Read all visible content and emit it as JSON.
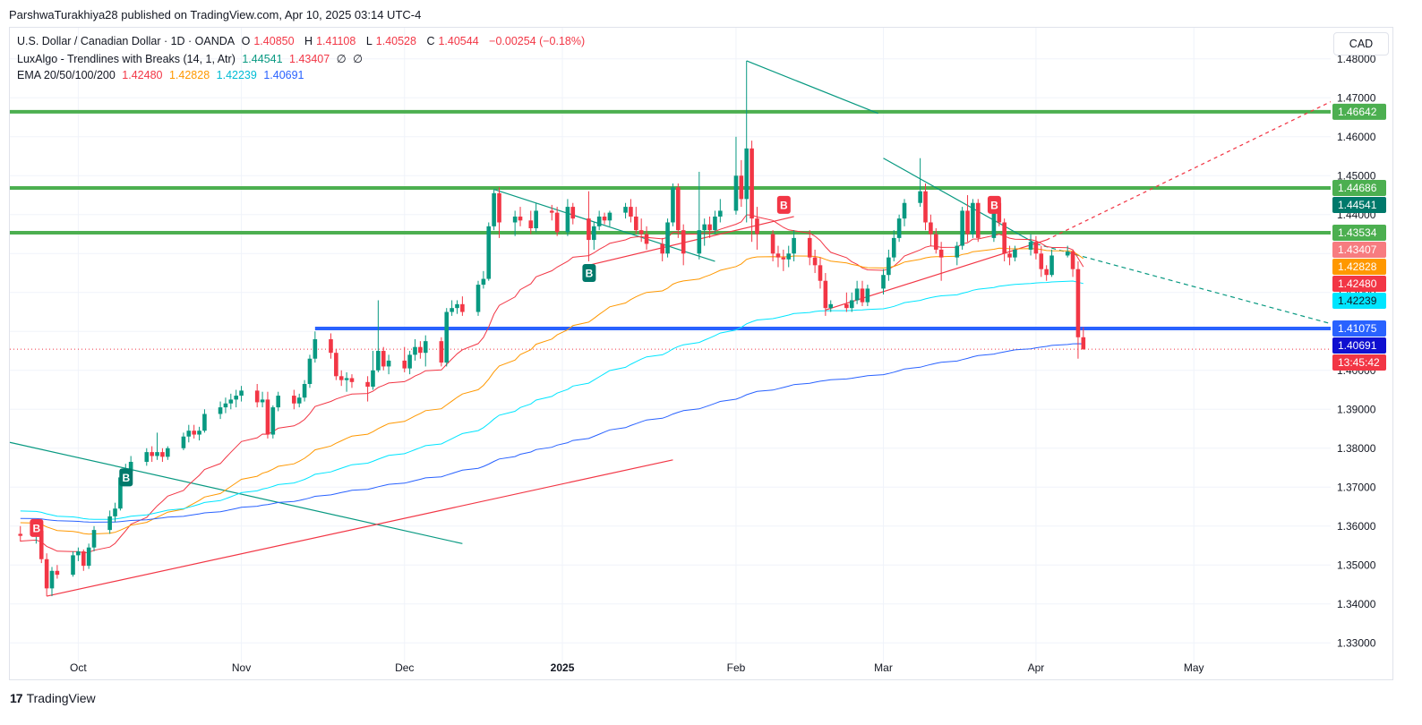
{
  "header": {
    "published": "ParshwaTurakhiya28 published on TradingView.com, Apr 10, 2025 03:14 UTC-4"
  },
  "legend": {
    "symbol": "U.S. Dollar / Canadian Dollar · 1D · OANDA",
    "o_label": "O",
    "o": "1.40850",
    "h_label": "H",
    "h": "1.41108",
    "l_label": "L",
    "l": "1.40528",
    "c_label": "C",
    "c": "1.40544",
    "change": "−0.00254 (−0.18%)",
    "luxalgo": "LuxAlgo - Trendlines with Breaks (14, 1, Atr)",
    "lux_v1": "1.44541",
    "lux_v2": "1.43407",
    "lux_v3": "∅",
    "lux_v4": "∅",
    "ema": "EMA 20/50/100/200",
    "ema20": "1.42480",
    "ema50": "1.42828",
    "ema100": "1.42239",
    "ema200": "1.40691"
  },
  "currency_button": "CAD",
  "brand": {
    "logo": "17",
    "name": "TradingView"
  },
  "colors": {
    "up": "#089981",
    "down": "#f23645",
    "ema20": "#f23645",
    "ema50": "#ff9800",
    "ema100": "#00e5ff",
    "ema200": "#2962ff",
    "level": "#4caf50",
    "support": "#2962ff",
    "trend_down": "#089981",
    "trend_up": "#f23645"
  },
  "chart_data": {
    "type": "candlestick",
    "ylim": [
      1.325,
      1.488
    ],
    "y_ticks": [
      "1.48000",
      "1.47000",
      "1.46000",
      "1.45000",
      "1.44000",
      "1.43000",
      "1.42000",
      "1.41000",
      "1.40000",
      "1.39000",
      "1.38000",
      "1.37000",
      "1.36000",
      "1.35000",
      "1.34000",
      "1.33000"
    ],
    "x_ticks": [
      {
        "label": "Oct",
        "date": "2024-10-01"
      },
      {
        "label": "Nov",
        "date": "2024-11-01"
      },
      {
        "label": "Dec",
        "date": "2024-12-02"
      },
      {
        "label": "2025",
        "date": "2025-01-01",
        "bold": true
      },
      {
        "label": "Feb",
        "date": "2025-02-03"
      },
      {
        "label": "Mar",
        "date": "2025-03-03"
      },
      {
        "label": "Apr",
        "date": "2025-04-01"
      },
      {
        "label": "May",
        "date": "2025-05-01"
      }
    ],
    "horizontal_levels": [
      {
        "value": 1.46642,
        "label": "1.46642",
        "color": "#4caf50"
      },
      {
        "value": 1.44686,
        "label": "1.44686",
        "color": "#4caf50"
      },
      {
        "value": 1.43534,
        "label": "1.43534",
        "color": "#4caf50"
      },
      {
        "value": 1.41075,
        "label": "1.41075",
        "color": "#2962ff",
        "start_date": "2024-11-15"
      }
    ],
    "price_labels": [
      {
        "value": 1.46642,
        "label": "1.46642",
        "bg": "#4caf50",
        "fg": "#ffffff"
      },
      {
        "value": 1.44686,
        "label": "1.44686",
        "bg": "#4caf50",
        "fg": "#ffffff"
      },
      {
        "value": 1.44541,
        "label": "1.44541",
        "bg": "#00796b",
        "fg": "#ffffff"
      },
      {
        "value": 1.43534,
        "label": "1.43534",
        "bg": "#4caf50",
        "fg": "#ffffff"
      },
      {
        "value": 1.43407,
        "label": "1.43407",
        "bg": "#f77c80",
        "fg": "#ffffff"
      },
      {
        "value": 1.42828,
        "label": "1.42828",
        "bg": "#ff9800",
        "fg": "#ffffff"
      },
      {
        "value": 1.4248,
        "label": "1.42480",
        "bg": "#f23645",
        "fg": "#ffffff"
      },
      {
        "value": 1.42239,
        "label": "1.42239",
        "bg": "#00e5ff",
        "fg": "#131722"
      },
      {
        "value": 1.41075,
        "label": "1.41075",
        "bg": "#2962ff",
        "fg": "#ffffff"
      },
      {
        "value": 1.40691,
        "label": "1.40691",
        "bg": "#1010d0",
        "fg": "#ffffff"
      },
      {
        "value": 1.40544,
        "label": "13:45:42",
        "bg": "#f23645",
        "fg": "#ffffff"
      }
    ],
    "last_price": 1.40544,
    "candles": [
      [
        "2024-09-20",
        1.358,
        1.36,
        1.356,
        1.3575
      ],
      [
        "2024-09-23",
        1.3575,
        1.3595,
        1.3555,
        1.3588
      ],
      [
        "2024-09-24",
        1.3588,
        1.36,
        1.3505,
        1.3515
      ],
      [
        "2024-09-25",
        1.3515,
        1.353,
        1.342,
        1.344
      ],
      [
        "2024-09-26",
        1.344,
        1.3495,
        1.342,
        1.3485
      ],
      [
        "2024-09-27",
        1.3485,
        1.35,
        1.3465,
        1.3475
      ],
      [
        "2024-09-30",
        1.3475,
        1.3535,
        1.347,
        1.3525
      ],
      [
        "2024-10-01",
        1.3525,
        1.3545,
        1.351,
        1.3535
      ],
      [
        "2024-10-02",
        1.3535,
        1.354,
        1.3485,
        1.3498
      ],
      [
        "2024-10-03",
        1.3498,
        1.3555,
        1.349,
        1.3545
      ],
      [
        "2024-10-04",
        1.3545,
        1.36,
        1.3535,
        1.359
      ],
      [
        "2024-10-07",
        1.359,
        1.364,
        1.358,
        1.3625
      ],
      [
        "2024-10-08",
        1.3625,
        1.366,
        1.361,
        1.3645
      ],
      [
        "2024-10-09",
        1.3645,
        1.374,
        1.364,
        1.3725
      ],
      [
        "2024-10-10",
        1.3725,
        1.376,
        1.3715,
        1.374
      ],
      [
        "2024-10-11",
        1.374,
        1.378,
        1.373,
        1.3765
      ],
      [
        "2024-10-14",
        1.3765,
        1.38,
        1.3755,
        1.379
      ],
      [
        "2024-10-15",
        1.379,
        1.3805,
        1.3765,
        1.378
      ],
      [
        "2024-10-16",
        1.378,
        1.384,
        1.377,
        1.379
      ],
      [
        "2024-10-17",
        1.379,
        1.38,
        1.3765,
        1.3778
      ],
      [
        "2024-10-18",
        1.3778,
        1.3805,
        1.377,
        1.38
      ],
      [
        "2024-10-21",
        1.38,
        1.384,
        1.3795,
        1.383
      ],
      [
        "2024-10-22",
        1.383,
        1.386,
        1.3815,
        1.3845
      ],
      [
        "2024-10-23",
        1.3845,
        1.386,
        1.3825,
        1.3835
      ],
      [
        "2024-10-24",
        1.3835,
        1.3855,
        1.382,
        1.3845
      ],
      [
        "2024-10-25",
        1.3845,
        1.39,
        1.384,
        1.3888
      ],
      [
        "2024-10-28",
        1.3888,
        1.392,
        1.3875,
        1.3905
      ],
      [
        "2024-10-29",
        1.3905,
        1.393,
        1.389,
        1.3915
      ],
      [
        "2024-10-30",
        1.3915,
        1.394,
        1.39,
        1.3925
      ],
      [
        "2024-10-31",
        1.3925,
        1.395,
        1.3905,
        1.3935
      ],
      [
        "2024-11-01",
        1.3935,
        1.396,
        1.392,
        1.3948
      ],
      [
        "2024-11-04",
        1.3948,
        1.3965,
        1.3905,
        1.3918
      ],
      [
        "2024-11-05",
        1.3918,
        1.3945,
        1.3905,
        1.3925
      ],
      [
        "2024-11-06",
        1.3925,
        1.3945,
        1.3825,
        1.3835
      ],
      [
        "2024-11-07",
        1.3835,
        1.391,
        1.3825,
        1.3905
      ],
      [
        "2024-11-08",
        1.3905,
        1.3945,
        1.3895,
        1.3935
      ],
      [
        "2024-11-11",
        1.3935,
        1.395,
        1.39,
        1.3915
      ],
      [
        "2024-11-12",
        1.3915,
        1.394,
        1.3905,
        1.393
      ],
      [
        "2024-11-13",
        1.393,
        1.3975,
        1.392,
        1.3965
      ],
      [
        "2024-11-14",
        1.3965,
        1.404,
        1.3955,
        1.403
      ],
      [
        "2024-11-15",
        1.403,
        1.41,
        1.402,
        1.408
      ],
      [
        "2024-11-18",
        1.408,
        1.4095,
        1.403,
        1.4045
      ],
      [
        "2024-11-19",
        1.4045,
        1.4055,
        1.3975,
        1.3985
      ],
      [
        "2024-11-20",
        1.3985,
        1.4,
        1.396,
        1.3975
      ],
      [
        "2024-11-21",
        1.3975,
        1.3995,
        1.3945,
        1.398
      ],
      [
        "2024-11-22",
        1.398,
        1.399,
        1.3955,
        1.397
      ],
      [
        "2024-11-25",
        1.397,
        1.3985,
        1.392,
        1.3958
      ],
      [
        "2024-11-26",
        1.3958,
        1.405,
        1.395,
        1.4
      ],
      [
        "2024-11-27",
        1.4,
        1.418,
        1.3995,
        1.405
      ],
      [
        "2024-11-28",
        1.405,
        1.406,
        1.4,
        1.401
      ],
      [
        "2024-11-29",
        1.401,
        1.404,
        1.399,
        1.4025
      ],
      [
        "2024-12-02",
        1.4025,
        1.406,
        1.3995,
        1.4005
      ],
      [
        "2024-12-03",
        1.4005,
        1.405,
        1.399,
        1.404
      ],
      [
        "2024-12-04",
        1.404,
        1.408,
        1.4025,
        1.406
      ],
      [
        "2024-12-05",
        1.406,
        1.4075,
        1.403,
        1.4045
      ],
      [
        "2024-12-06",
        1.4045,
        1.409,
        1.401,
        1.4075
      ],
      [
        "2024-12-09",
        1.4075,
        1.4085,
        1.401,
        1.402
      ],
      [
        "2024-12-10",
        1.402,
        1.416,
        1.401,
        1.415
      ],
      [
        "2024-12-11",
        1.415,
        1.418,
        1.414,
        1.416
      ],
      [
        "2024-12-12",
        1.416,
        1.418,
        1.4145,
        1.417
      ],
      [
        "2024-12-13",
        1.417,
        1.419,
        1.414,
        1.415
      ],
      [
        "2024-12-16",
        1.415,
        1.423,
        1.414,
        1.422
      ],
      [
        "2024-12-17",
        1.422,
        1.4255,
        1.421,
        1.4235
      ],
      [
        "2024-12-18",
        1.4235,
        1.438,
        1.423,
        1.437
      ],
      [
        "2024-12-19",
        1.437,
        1.4465,
        1.436,
        1.4455
      ],
      [
        "2024-12-20",
        1.4455,
        1.447,
        1.434,
        1.438
      ],
      [
        "2024-12-23",
        1.438,
        1.441,
        1.4345,
        1.4395
      ],
      [
        "2024-12-24",
        1.4395,
        1.442,
        1.437,
        1.4385
      ],
      [
        "2024-12-26",
        1.4385,
        1.441,
        1.435,
        1.4365
      ],
      [
        "2024-12-27",
        1.4365,
        1.443,
        1.4355,
        1.441
      ],
      [
        "2024-12-30",
        1.441,
        1.4425,
        1.4385,
        1.4405
      ],
      [
        "2024-12-31",
        1.4405,
        1.442,
        1.4345,
        1.4355
      ],
      [
        "2025-01-02",
        1.4355,
        1.444,
        1.4345,
        1.442
      ],
      [
        "2025-01-03",
        1.442,
        1.443,
        1.4375,
        1.439
      ],
      [
        "2025-01-06",
        1.439,
        1.446,
        1.428,
        1.4335
      ],
      [
        "2025-01-07",
        1.4335,
        1.438,
        1.431,
        1.437
      ],
      [
        "2025-01-08",
        1.437,
        1.441,
        1.436,
        1.4395
      ],
      [
        "2025-01-09",
        1.4395,
        1.4405,
        1.4375,
        1.4385
      ],
      [
        "2025-01-10",
        1.4385,
        1.441,
        1.437,
        1.4405
      ],
      [
        "2025-01-13",
        1.4405,
        1.443,
        1.439,
        1.442
      ],
      [
        "2025-01-14",
        1.442,
        1.444,
        1.438,
        1.4395
      ],
      [
        "2025-01-15",
        1.4395,
        1.442,
        1.435,
        1.436
      ],
      [
        "2025-01-16",
        1.436,
        1.439,
        1.433,
        1.435
      ],
      [
        "2025-01-17",
        1.435,
        1.437,
        1.431,
        1.4325
      ],
      [
        "2025-01-20",
        1.4325,
        1.434,
        1.428,
        1.43
      ],
      [
        "2025-01-21",
        1.43,
        1.439,
        1.429,
        1.438
      ],
      [
        "2025-01-22",
        1.438,
        1.448,
        1.437,
        1.447
      ],
      [
        "2025-01-23",
        1.447,
        1.448,
        1.434,
        1.436
      ],
      [
        "2025-01-24",
        1.436,
        1.4375,
        1.427,
        1.43
      ],
      [
        "2025-01-27",
        1.43,
        1.451,
        1.4285,
        1.436
      ],
      [
        "2025-01-28",
        1.436,
        1.439,
        1.432,
        1.4375
      ],
      [
        "2025-01-29",
        1.4375,
        1.4395,
        1.434,
        1.436
      ],
      [
        "2025-01-30",
        1.436,
        1.441,
        1.435,
        1.4395
      ],
      [
        "2025-01-31",
        1.4395,
        1.444,
        1.438,
        1.441
      ],
      [
        "2025-02-03",
        1.441,
        1.46,
        1.44,
        1.45
      ],
      [
        "2025-02-04",
        1.45,
        1.454,
        1.442,
        1.444
      ],
      [
        "2025-02-05",
        1.444,
        1.4795,
        1.438,
        1.457
      ],
      [
        "2025-02-06",
        1.457,
        1.459,
        1.433,
        1.439
      ],
      [
        "2025-02-07",
        1.439,
        1.442,
        1.431,
        1.435
      ],
      [
        "2025-02-10",
        1.435,
        1.436,
        1.428,
        1.43
      ],
      [
        "2025-02-11",
        1.43,
        1.432,
        1.4265,
        1.429
      ],
      [
        "2025-02-12",
        1.429,
        1.431,
        1.4255,
        1.4285
      ],
      [
        "2025-02-13",
        1.4285,
        1.432,
        1.4265,
        1.43
      ],
      [
        "2025-02-14",
        1.43,
        1.436,
        1.428,
        1.434
      ],
      [
        "2025-02-17",
        1.434,
        1.436,
        1.427,
        1.429
      ],
      [
        "2025-02-18",
        1.429,
        1.431,
        1.425,
        1.427
      ],
      [
        "2025-02-19",
        1.427,
        1.429,
        1.421,
        1.423
      ],
      [
        "2025-02-20",
        1.423,
        1.425,
        1.414,
        1.416
      ],
      [
        "2025-02-21",
        1.416,
        1.418,
        1.415,
        1.417
      ],
      [
        "2025-02-24",
        1.417,
        1.42,
        1.415,
        1.416
      ],
      [
        "2025-02-25",
        1.416,
        1.42,
        1.415,
        1.418
      ],
      [
        "2025-02-26",
        1.418,
        1.423,
        1.417,
        1.421
      ],
      [
        "2025-02-27",
        1.421,
        1.423,
        1.4165,
        1.4175
      ],
      [
        "2025-02-28",
        1.4175,
        1.422,
        1.4165,
        1.421
      ],
      [
        "2025-03-03",
        1.421,
        1.426,
        1.4195,
        1.4245
      ],
      [
        "2025-03-04",
        1.4245,
        1.431,
        1.423,
        1.429
      ],
      [
        "2025-03-05",
        1.429,
        1.436,
        1.428,
        1.434
      ],
      [
        "2025-03-06",
        1.434,
        1.44,
        1.433,
        1.439
      ],
      [
        "2025-03-07",
        1.439,
        1.444,
        1.437,
        1.443
      ],
      [
        "2025-03-10",
        1.443,
        1.4545,
        1.442,
        1.446
      ],
      [
        "2025-03-11",
        1.446,
        1.448,
        1.436,
        1.438
      ],
      [
        "2025-03-12",
        1.438,
        1.44,
        1.432,
        1.435
      ],
      [
        "2025-03-13",
        1.435,
        1.4365,
        1.43,
        1.431
      ],
      [
        "2025-03-14",
        1.431,
        1.433,
        1.423,
        1.429
      ],
      [
        "2025-03-17",
        1.429,
        1.433,
        1.427,
        1.432
      ],
      [
        "2025-03-18",
        1.432,
        1.442,
        1.431,
        1.441
      ],
      [
        "2025-03-19",
        1.441,
        1.445,
        1.433,
        1.435
      ],
      [
        "2025-03-20",
        1.435,
        1.444,
        1.434,
        1.443
      ],
      [
        "2025-03-21",
        1.443,
        1.444,
        1.433,
        1.434
      ],
      [
        "2025-03-24",
        1.434,
        1.444,
        1.433,
        1.443
      ],
      [
        "2025-03-25",
        1.443,
        1.444,
        1.437,
        1.438
      ],
      [
        "2025-03-26",
        1.438,
        1.439,
        1.428,
        1.43
      ],
      [
        "2025-03-27",
        1.43,
        1.432,
        1.427,
        1.429
      ],
      [
        "2025-03-28",
        1.429,
        1.432,
        1.428,
        1.431
      ],
      [
        "2025-03-31",
        1.431,
        1.435,
        1.4295,
        1.433
      ],
      [
        "2025-04-01",
        1.433,
        1.4345,
        1.4285,
        1.43
      ],
      [
        "2025-04-02",
        1.43,
        1.432,
        1.424,
        1.426
      ],
      [
        "2025-04-03",
        1.426,
        1.427,
        1.423,
        1.4245
      ],
      [
        "2025-04-04",
        1.4245,
        1.431,
        1.424,
        1.4295
      ],
      [
        "2025-04-07",
        1.4295,
        1.432,
        1.429,
        1.4305
      ],
      [
        "2025-04-08",
        1.4305,
        1.431,
        1.424,
        1.426
      ],
      [
        "2025-04-09",
        1.426,
        1.428,
        1.403,
        1.4085
      ],
      [
        "2025-04-10",
        1.4085,
        1.4111,
        1.4053,
        1.4054
      ]
    ]
  }
}
